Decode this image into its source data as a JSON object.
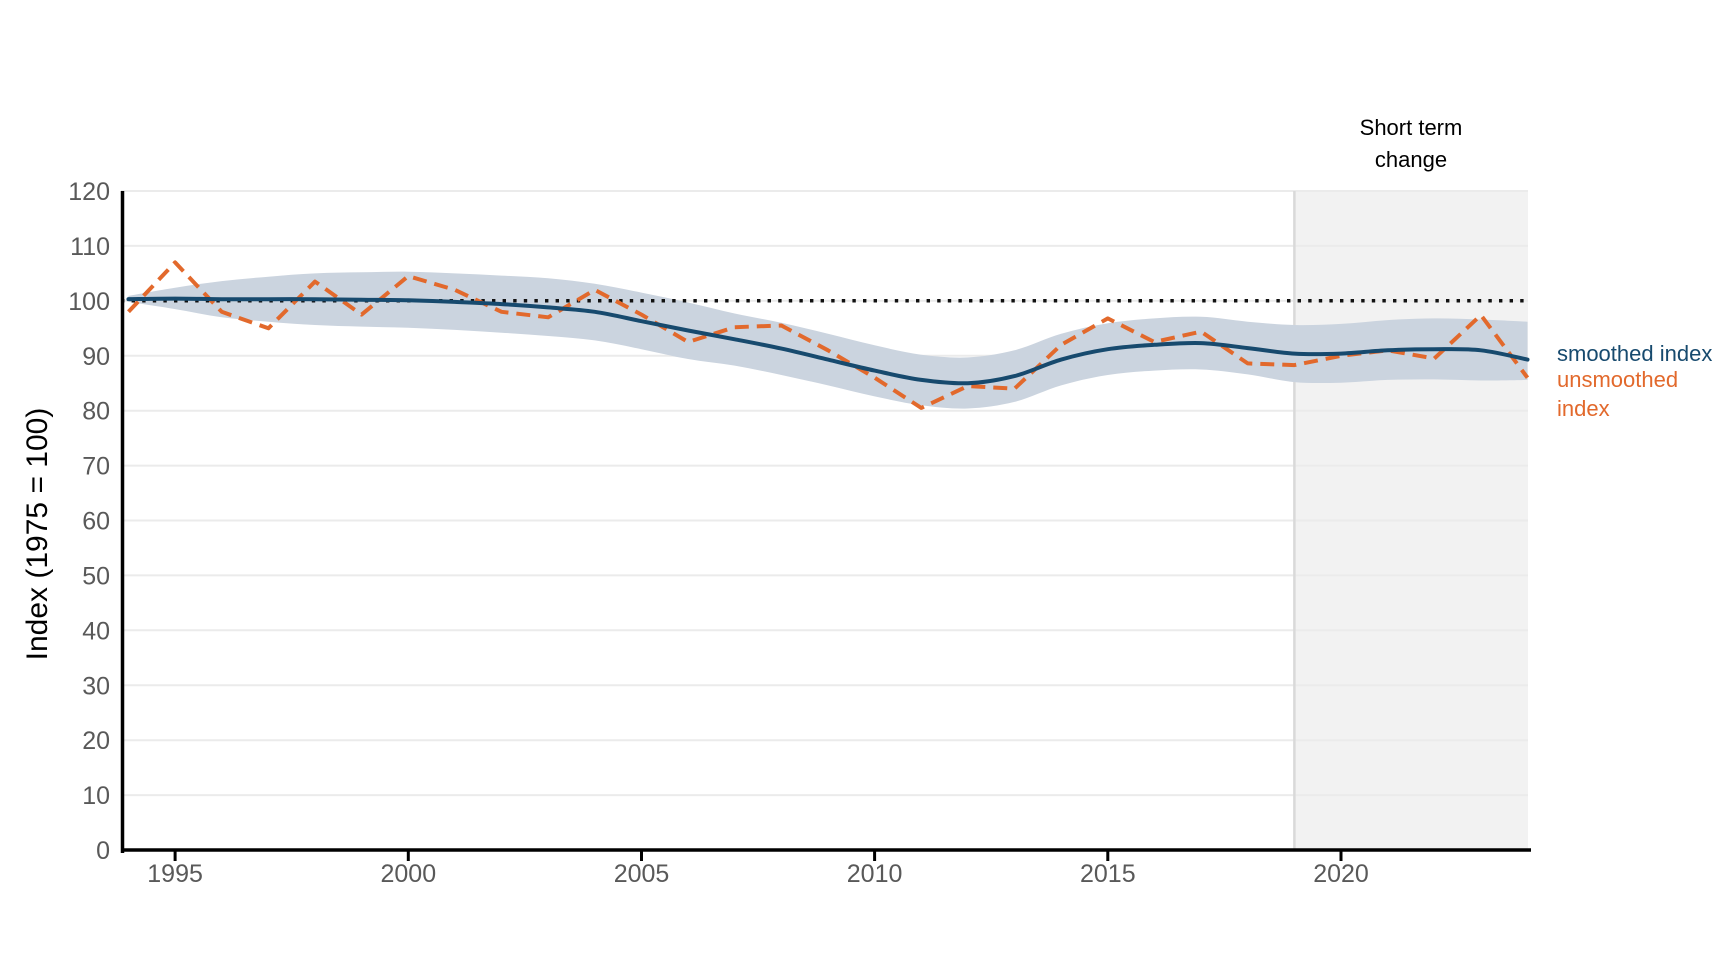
{
  "axes": {
    "y_label": "Index (1975 = 100)"
  },
  "annotations": {
    "short_term": {
      "line1": "Short term",
      "line2": "change"
    }
  },
  "legend": {
    "smoothed_label": "smoothed index",
    "unsmoothed_label_line1": "unsmoothed",
    "unsmoothed_label_line2": "index"
  },
  "colors": {
    "smoothed_line": "#174a6e",
    "unsmoothed_line": "#e2692c",
    "confidence_band": "#cbd4df",
    "shaded_region": "#f2f2f2",
    "shaded_region_border": "#d9d9d9",
    "gridline": "#ebebeb",
    "axis_line": "#000000",
    "tick_label": "#595959",
    "reference_line": "#111111"
  },
  "chart_data": {
    "type": "line",
    "title": "",
    "xlabel": "",
    "ylabel": "Index (1975 = 100)",
    "xlim": [
      1993.84,
      2024.01
    ],
    "ylim": [
      0,
      120
    ],
    "x_ticks": [
      1995,
      2000,
      2005,
      2010,
      2015,
      2020
    ],
    "y_ticks": [
      0,
      10,
      20,
      30,
      40,
      50,
      60,
      70,
      80,
      90,
      100,
      110,
      120
    ],
    "grid": "horizontal",
    "legend_position": "right",
    "x": [
      1994,
      1995,
      1996,
      1997,
      1998,
      1999,
      2000,
      2001,
      2002,
      2003,
      2004,
      2005,
      2006,
      2007,
      2008,
      2009,
      2010,
      2011,
      2012,
      2013,
      2014,
      2015,
      2016,
      2017,
      2018,
      2019,
      2020,
      2021,
      2022,
      2023,
      2024
    ],
    "series": [
      {
        "name": "smoothed index",
        "style": "solid",
        "color": "#174a6e",
        "values": [
          100.3,
          100.4,
          100.3,
          100.3,
          100.3,
          100.2,
          100.1,
          99.8,
          99.4,
          98.8,
          98.0,
          96.3,
          94.6,
          93.0,
          91.3,
          89.3,
          87.3,
          85.6,
          85.0,
          86.3,
          89.3,
          91.2,
          92.0,
          92.3,
          91.4,
          90.4,
          90.4,
          91.0,
          91.2,
          91.0,
          89.3
        ]
      },
      {
        "name": "unsmoothed index",
        "style": "dashed",
        "color": "#e2692c",
        "values": [
          98.0,
          107.0,
          98.0,
          95.0,
          103.5,
          97.5,
          104.5,
          102.0,
          98.0,
          97.0,
          102.0,
          97.5,
          92.5,
          95.2,
          95.5,
          91.0,
          86.0,
          80.5,
          84.5,
          84.0,
          92.0,
          96.8,
          92.5,
          94.4,
          88.6,
          88.3,
          90.0,
          91.0,
          89.5,
          97.4,
          86.0
        ]
      }
    ],
    "band": {
      "name": "smoothed index confidence band",
      "color": "#cbd4df",
      "upper": [
        100.9,
        102.4,
        103.6,
        104.4,
        105.0,
        105.2,
        105.3,
        105.0,
        104.6,
        104.1,
        103.1,
        101.5,
        99.7,
        97.7,
        96.0,
        94.0,
        91.9,
        90.2,
        89.7,
        91.0,
        94.0,
        95.9,
        96.8,
        97.1,
        96.2,
        95.6,
        95.8,
        96.5,
        96.8,
        96.6,
        96.2
      ],
      "lower": [
        99.8,
        98.5,
        97.0,
        96.2,
        95.6,
        95.3,
        95.1,
        94.7,
        94.2,
        93.6,
        92.8,
        91.2,
        89.4,
        88.2,
        86.5,
        84.6,
        82.6,
        81.0,
        80.4,
        81.6,
        84.6,
        86.5,
        87.3,
        87.5,
        86.6,
        85.2,
        85.1,
        85.6,
        85.7,
        85.5,
        85.6
      ]
    },
    "reference_line": {
      "value": 100,
      "style": "dotted",
      "color": "#111111"
    },
    "shaded_region": {
      "label": "Short term change",
      "start_x": 2019,
      "end_x": 2024.01,
      "color": "#f2f2f2"
    }
  }
}
